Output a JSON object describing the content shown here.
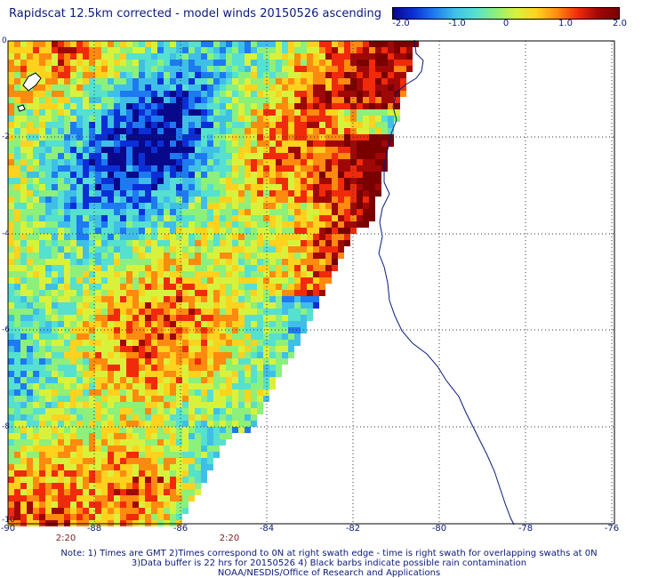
{
  "title": "Rapidscat 12.5km corrected - model winds 20150526 ascending",
  "colorbar": {
    "ticks": [
      "-2.0",
      "-1.0",
      "0",
      "1.0",
      "2.0"
    ],
    "colors": [
      "#08088a",
      "#0b2fd6",
      "#1d7af0",
      "#3fbfe8",
      "#55e0d0",
      "#8cf07a",
      "#d8f23c",
      "#ffd21e",
      "#ff8a10",
      "#f02a0a",
      "#a00808",
      "#7a0000"
    ]
  },
  "map": {
    "x_ticks": [
      "-90",
      "-88",
      "-86",
      "-84",
      "-82",
      "-80",
      "-78",
      "-76"
    ],
    "y_ticks": [
      "0",
      "-2",
      "-4",
      "-6",
      "-8",
      "-10"
    ],
    "time_labels": [
      "2:20",
      "2:20"
    ],
    "lon_range": [
      -90,
      -76
    ],
    "lat_range": [
      -10,
      0
    ],
    "grid": "dotted"
  },
  "notes": {
    "line1": "Note: 1) Times are GMT 2)Times correspond to 0N at right swath edge - time is right swath for overlapping swaths at 0N",
    "line2": "3)Data buffer is 22 hrs for 20150526 4) Black barbs indicate possible rain contamination",
    "line3": "NOAA/NESDIS/Office of Research and Applications"
  }
}
